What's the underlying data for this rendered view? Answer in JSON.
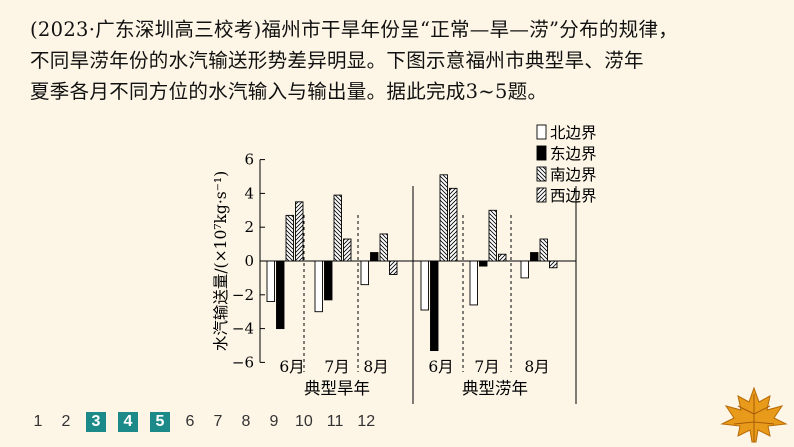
{
  "question": {
    "line1": "(2023·广东深圳高三校考)福州市干旱年份呈“正常—旱—涝”分布的规律，",
    "line2": "不同旱涝年份的水汽输送形势差异明显。下图示意福州市典型旱、涝年",
    "line3": "夏季各月不同方位的水汽输入与输出量。据此完成3~5题。"
  },
  "chart_data": {
    "type": "bar",
    "ylabel": "水汽输送量/(×10⁷kg·s⁻¹)",
    "ylim": [
      -6,
      6
    ],
    "yticks": [
      "6",
      "4",
      "2",
      "0",
      "−2",
      "−4",
      "−6"
    ],
    "groups": [
      "典型旱年",
      "典型涝年"
    ],
    "months": [
      "6月",
      "7月",
      "8月"
    ],
    "series": [
      {
        "name": "北边界",
        "pattern": "white",
        "values": [
          -2.4,
          -3.0,
          -1.4,
          -2.9,
          -2.6,
          -1.0
        ]
      },
      {
        "name": "东边界",
        "pattern": "black",
        "values": [
          -4.0,
          -2.3,
          0.5,
          -5.3,
          -0.3,
          0.5
        ]
      },
      {
        "name": "南边界",
        "pattern": "hatch-back",
        "values": [
          2.7,
          3.9,
          1.6,
          5.1,
          3.0,
          1.3
        ]
      },
      {
        "name": "西边界",
        "pattern": "hatch-forward",
        "values": [
          3.5,
          1.3,
          -0.8,
          4.3,
          0.4,
          -0.4
        ]
      }
    ]
  },
  "pagination": {
    "pages": [
      "1",
      "2",
      "3",
      "4",
      "5",
      "6",
      "7",
      "8",
      "9",
      "10",
      "11",
      "12"
    ],
    "active": [
      "3",
      "4",
      "5"
    ]
  },
  "colors": {
    "background": "#fdf6e7",
    "active_page": "#1b8a88",
    "leaf": "#e89a1a"
  }
}
